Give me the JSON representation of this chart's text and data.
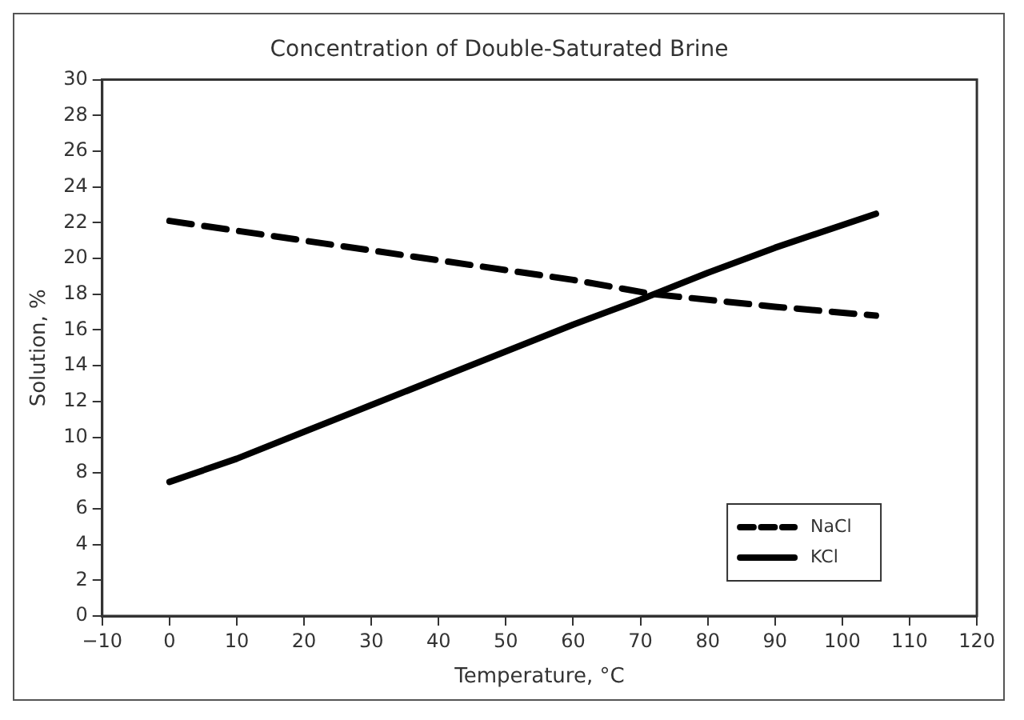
{
  "chart_data": {
    "type": "line",
    "title": "Concentration of Double-Saturated Brine",
    "xlabel": "Temperature, °C",
    "ylabel": "Solution, %",
    "xlim": [
      -10,
      120
    ],
    "xticks": [
      {
        "value": -10,
        "label": "−10"
      },
      0,
      10,
      20,
      30,
      40,
      50,
      60,
      70,
      80,
      90,
      100,
      110,
      120
    ],
    "ylim": [
      0,
      30
    ],
    "yticks": [
      0,
      2,
      4,
      6,
      8,
      10,
      12,
      14,
      16,
      18,
      20,
      22,
      24,
      26,
      28,
      30
    ],
    "grid": false,
    "legend": "bottom right",
    "marker": "none",
    "series": [
      {
        "name": "NaCl",
        "color": "#000000",
        "line_style": "dashed",
        "x": [
          0,
          20,
          40,
          60,
          72,
          90,
          105
        ],
        "values": [
          22.1,
          21.0,
          19.9,
          18.8,
          18.0,
          17.3,
          16.8
        ]
      },
      {
        "name": "KCl",
        "color": "#000000",
        "line_style": "solid",
        "x": [
          0,
          10,
          20,
          30,
          40,
          50,
          60,
          70,
          80,
          90,
          105
        ],
        "values": [
          7.5,
          8.8,
          10.3,
          11.8,
          13.3,
          14.8,
          16.3,
          17.7,
          19.2,
          20.6,
          22.5
        ]
      }
    ]
  }
}
